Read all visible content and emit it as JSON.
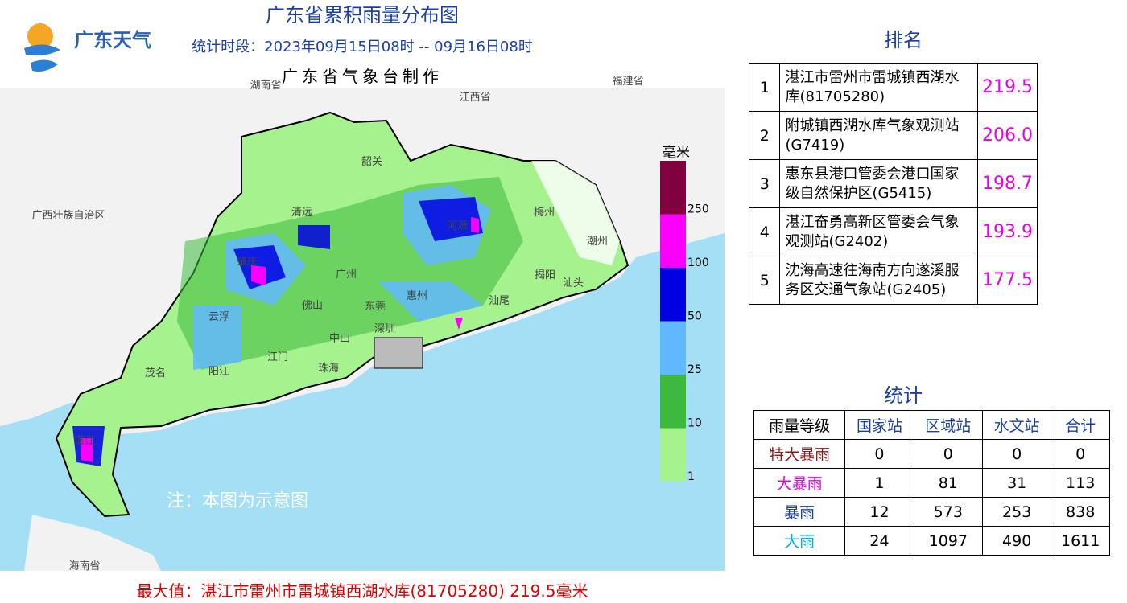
{
  "header": {
    "logo_text": "广东天气",
    "title": "广东省累积雨量分布图",
    "period": "统计时段：2023年09月15日08时  --  09月16日08时",
    "producer": "广东省气象台制作"
  },
  "map": {
    "region_labels": [
      "湖南省",
      "江西省",
      "福建省",
      "广西壮族自治区",
      "海南省",
      "韶关",
      "清远",
      "梅州",
      "潮州",
      "河源",
      "肇庆",
      "广州",
      "揭阳",
      "汕头",
      "惠州",
      "汕尾",
      "佛山",
      "东莞",
      "云浮",
      "深圳",
      "中山",
      "江门",
      "珠海",
      "阳江",
      "茂名",
      "湛江"
    ],
    "note": "注：本图为示意图"
  },
  "legend": {
    "unit": "毫米",
    "labels": [
      "250",
      "100",
      "50",
      "25",
      "10",
      "1"
    ],
    "colors": [
      "#800040",
      "#fa00fa",
      "#0000e1",
      "#61b8ff",
      "#3dba3d",
      "#a6f28f"
    ]
  },
  "ranking": {
    "title": "排名",
    "rows": [
      [
        "1",
        "湛江市雷州市雷城镇西湖水库(81705280)",
        "219.5"
      ],
      [
        "2",
        "附城镇西湖水库气象观测站(G7419)",
        "206.0"
      ],
      [
        "3",
        "惠东县港口管委会港口国家级自然保护区(G5415)",
        "198.7"
      ],
      [
        "4",
        "湛江奋勇高新区管委会气象观测站(G2402)",
        "193.9"
      ],
      [
        "5",
        "沈海高速往海南方向遂溪服务区交通气象站(G2405)",
        "177.5"
      ]
    ]
  },
  "stats": {
    "title": "统计",
    "header": [
      "雨量等级",
      "国家站",
      "区域站",
      "水文站",
      "合计"
    ],
    "rows": [
      [
        "特大暴雨",
        "0",
        "0",
        "0",
        "0"
      ],
      [
        "大暴雨",
        "1",
        "81",
        "31",
        "113"
      ],
      [
        "暴雨",
        "12",
        "573",
        "253",
        "838"
      ],
      [
        "大雨",
        "24",
        "1097",
        "490",
        "1611"
      ]
    ]
  },
  "footer": "最大值：湛江市雷州市雷城镇西湖水库(81705280) 219.5毫米"
}
